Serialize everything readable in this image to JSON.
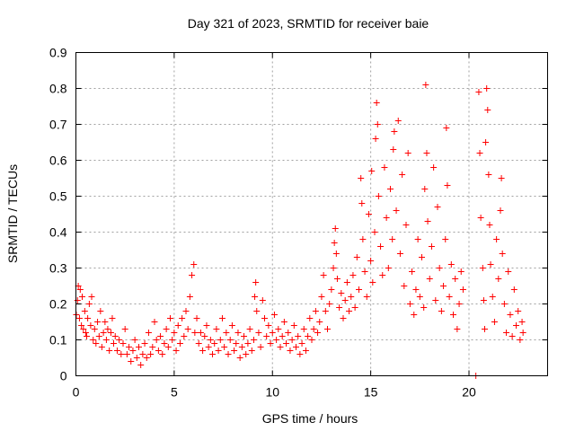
{
  "chart_data": {
    "type": "scatter",
    "title": "Day 321 of 2023, SRMTID for receiver baie",
    "xlabel": "GPS time / hours",
    "ylabel": "SRMTID / TECUs",
    "xlim": [
      0,
      24
    ],
    "ylim": [
      0,
      0.9
    ],
    "xticks": [
      0,
      5,
      10,
      15,
      20
    ],
    "xtick_labels": [
      "0",
      "5",
      "10",
      "15",
      "20"
    ],
    "yticks": [
      0,
      0.1,
      0.2,
      0.3,
      0.4,
      0.5,
      0.6,
      0.7,
      0.8,
      0.9
    ],
    "ytick_labels": [
      "0",
      "0.1",
      "0.2",
      "0.3",
      "0.4",
      "0.5",
      "0.6",
      "0.7",
      "0.8",
      "0.9"
    ],
    "grid": true,
    "marker": "plus",
    "color": "#ff0000",
    "series": [
      {
        "name": "SRMTID",
        "points": [
          [
            0.02,
            0.17
          ],
          [
            0.08,
            0.21
          ],
          [
            0.12,
            0.25
          ],
          [
            0.18,
            0.16
          ],
          [
            0.22,
            0.24
          ],
          [
            0.28,
            0.14
          ],
          [
            0.32,
            0.22
          ],
          [
            0.38,
            0.13
          ],
          [
            0.45,
            0.18
          ],
          [
            0.5,
            0.12
          ],
          [
            0.55,
            0.11
          ],
          [
            0.6,
            0.16
          ],
          [
            0.68,
            0.2
          ],
          [
            0.75,
            0.14
          ],
          [
            0.8,
            0.22
          ],
          [
            0.88,
            0.1
          ],
          [
            0.95,
            0.13
          ],
          [
            1.02,
            0.09
          ],
          [
            1.1,
            0.15
          ],
          [
            1.18,
            0.11
          ],
          [
            1.25,
            0.18
          ],
          [
            1.32,
            0.08
          ],
          [
            1.4,
            0.12
          ],
          [
            1.48,
            0.15
          ],
          [
            1.55,
            0.1
          ],
          [
            1.62,
            0.13
          ],
          [
            1.7,
            0.07
          ],
          [
            1.78,
            0.12
          ],
          [
            1.85,
            0.16
          ],
          [
            1.92,
            0.09
          ],
          [
            2.0,
            0.11
          ],
          [
            2.1,
            0.07
          ],
          [
            2.2,
            0.1
          ],
          [
            2.3,
            0.06
          ],
          [
            2.4,
            0.09
          ],
          [
            2.5,
            0.13
          ],
          [
            2.6,
            0.06
          ],
          [
            2.7,
            0.08
          ],
          [
            2.8,
            0.04
          ],
          [
            2.9,
            0.07
          ],
          [
            3.0,
            0.1
          ],
          [
            3.1,
            0.05
          ],
          [
            3.2,
            0.08
          ],
          [
            3.3,
            0.03
          ],
          [
            3.4,
            0.06
          ],
          [
            3.5,
            0.09
          ],
          [
            3.6,
            0.05
          ],
          [
            3.7,
            0.12
          ],
          [
            3.8,
            0.06
          ],
          [
            3.9,
            0.08
          ],
          [
            4.0,
            0.15
          ],
          [
            4.1,
            0.1
          ],
          [
            4.2,
            0.07
          ],
          [
            4.3,
            0.11
          ],
          [
            4.4,
            0.06
          ],
          [
            4.5,
            0.09
          ],
          [
            4.6,
            0.13
          ],
          [
            4.7,
            0.08
          ],
          [
            4.8,
            0.16
          ],
          [
            4.9,
            0.1
          ],
          [
            5.0,
            0.12
          ],
          [
            5.1,
            0.07
          ],
          [
            5.2,
            0.14
          ],
          [
            5.3,
            0.09
          ],
          [
            5.4,
            0.16
          ],
          [
            5.5,
            0.11
          ],
          [
            5.6,
            0.18
          ],
          [
            5.7,
            0.13
          ],
          [
            5.8,
            0.22
          ],
          [
            5.9,
            0.28
          ],
          [
            6.0,
            0.31
          ],
          [
            6.05,
            0.12
          ],
          [
            6.15,
            0.16
          ],
          [
            6.25,
            0.09
          ],
          [
            6.35,
            0.12
          ],
          [
            6.45,
            0.07
          ],
          [
            6.55,
            0.11
          ],
          [
            6.65,
            0.14
          ],
          [
            6.75,
            0.08
          ],
          [
            6.85,
            0.1
          ],
          [
            6.95,
            0.06
          ],
          [
            7.05,
            0.09
          ],
          [
            7.15,
            0.13
          ],
          [
            7.25,
            0.07
          ],
          [
            7.35,
            0.1
          ],
          [
            7.45,
            0.16
          ],
          [
            7.55,
            0.08
          ],
          [
            7.65,
            0.12
          ],
          [
            7.75,
            0.06
          ],
          [
            7.85,
            0.1
          ],
          [
            7.95,
            0.14
          ],
          [
            8.05,
            0.07
          ],
          [
            8.15,
            0.09
          ],
          [
            8.25,
            0.12
          ],
          [
            8.35,
            0.05
          ],
          [
            8.45,
            0.08
          ],
          [
            8.55,
            0.11
          ],
          [
            8.65,
            0.06
          ],
          [
            8.75,
            0.09
          ],
          [
            8.85,
            0.13
          ],
          [
            8.95,
            0.07
          ],
          [
            9.05,
            0.1
          ],
          [
            9.1,
            0.22
          ],
          [
            9.15,
            0.26
          ],
          [
            9.2,
            0.18
          ],
          [
            9.3,
            0.12
          ],
          [
            9.4,
            0.08
          ],
          [
            9.5,
            0.21
          ],
          [
            9.6,
            0.16
          ],
          [
            9.7,
            0.11
          ],
          [
            9.8,
            0.14
          ],
          [
            9.9,
            0.09
          ],
          [
            10.0,
            0.12
          ],
          [
            10.1,
            0.17
          ],
          [
            10.2,
            0.1
          ],
          [
            10.3,
            0.13
          ],
          [
            10.4,
            0.08
          ],
          [
            10.5,
            0.11
          ],
          [
            10.6,
            0.15
          ],
          [
            10.7,
            0.09
          ],
          [
            10.8,
            0.12
          ],
          [
            10.9,
            0.07
          ],
          [
            11.0,
            0.1
          ],
          [
            11.1,
            0.14
          ],
          [
            11.2,
            0.08
          ],
          [
            11.3,
            0.11
          ],
          [
            11.4,
            0.06
          ],
          [
            11.5,
            0.09
          ],
          [
            11.6,
            0.13
          ],
          [
            11.7,
            0.07
          ],
          [
            11.8,
            0.11
          ],
          [
            11.9,
            0.16
          ],
          [
            12.0,
            0.1
          ],
          [
            12.1,
            0.13
          ],
          [
            12.2,
            0.18
          ],
          [
            12.3,
            0.12
          ],
          [
            12.4,
            0.15
          ],
          [
            12.5,
            0.22
          ],
          [
            12.6,
            0.28
          ],
          [
            12.7,
            0.18
          ],
          [
            12.8,
            0.13
          ],
          [
            12.9,
            0.2
          ],
          [
            13.0,
            0.24
          ],
          [
            13.1,
            0.3
          ],
          [
            13.15,
            0.37
          ],
          [
            13.2,
            0.41
          ],
          [
            13.25,
            0.34
          ],
          [
            13.3,
            0.27
          ],
          [
            13.4,
            0.19
          ],
          [
            13.5,
            0.23
          ],
          [
            13.6,
            0.16
          ],
          [
            13.7,
            0.21
          ],
          [
            13.8,
            0.26
          ],
          [
            13.9,
            0.18
          ],
          [
            14.0,
            0.22
          ],
          [
            14.1,
            0.28
          ],
          [
            14.2,
            0.19
          ],
          [
            14.3,
            0.33
          ],
          [
            14.4,
            0.24
          ],
          [
            14.5,
            0.55
          ],
          [
            14.55,
            0.48
          ],
          [
            14.6,
            0.38
          ],
          [
            14.7,
            0.29
          ],
          [
            14.8,
            0.22
          ],
          [
            14.9,
            0.45
          ],
          [
            15.0,
            0.32
          ],
          [
            15.05,
            0.57
          ],
          [
            15.1,
            0.26
          ],
          [
            15.2,
            0.4
          ],
          [
            15.25,
            0.66
          ],
          [
            15.3,
            0.76
          ],
          [
            15.35,
            0.7
          ],
          [
            15.4,
            0.5
          ],
          [
            15.5,
            0.36
          ],
          [
            15.6,
            0.28
          ],
          [
            15.7,
            0.58
          ],
          [
            15.8,
            0.44
          ],
          [
            15.9,
            0.3
          ],
          [
            16.0,
            0.52
          ],
          [
            16.1,
            0.38
          ],
          [
            16.15,
            0.63
          ],
          [
            16.2,
            0.68
          ],
          [
            16.3,
            0.46
          ],
          [
            16.4,
            0.71
          ],
          [
            16.5,
            0.34
          ],
          [
            16.6,
            0.56
          ],
          [
            16.7,
            0.25
          ],
          [
            16.8,
            0.42
          ],
          [
            16.9,
            0.62
          ],
          [
            17.0,
            0.2
          ],
          [
            17.1,
            0.29
          ],
          [
            17.2,
            0.17
          ],
          [
            17.3,
            0.24
          ],
          [
            17.4,
            0.38
          ],
          [
            17.5,
            0.22
          ],
          [
            17.6,
            0.33
          ],
          [
            17.7,
            0.19
          ],
          [
            17.75,
            0.52
          ],
          [
            17.8,
            0.81
          ],
          [
            17.85,
            0.62
          ],
          [
            17.9,
            0.43
          ],
          [
            18.0,
            0.27
          ],
          [
            18.1,
            0.36
          ],
          [
            18.2,
            0.58
          ],
          [
            18.3,
            0.21
          ],
          [
            18.4,
            0.47
          ],
          [
            18.5,
            0.3
          ],
          [
            18.6,
            0.18
          ],
          [
            18.7,
            0.25
          ],
          [
            18.8,
            0.38
          ],
          [
            18.85,
            0.69
          ],
          [
            18.9,
            0.53
          ],
          [
            19.0,
            0.22
          ],
          [
            19.1,
            0.31
          ],
          [
            19.2,
            0.17
          ],
          [
            19.3,
            0.27
          ],
          [
            19.4,
            0.13
          ],
          [
            19.5,
            0.2
          ],
          [
            19.6,
            0.29
          ],
          [
            19.7,
            0.24
          ],
          [
            20.35,
            0.0
          ],
          [
            20.5,
            0.79
          ],
          [
            20.55,
            0.62
          ],
          [
            20.6,
            0.44
          ],
          [
            20.7,
            0.3
          ],
          [
            20.75,
            0.21
          ],
          [
            20.8,
            0.13
          ],
          [
            20.85,
            0.65
          ],
          [
            20.9,
            0.8
          ],
          [
            20.95,
            0.74
          ],
          [
            21.0,
            0.56
          ],
          [
            21.05,
            0.42
          ],
          [
            21.1,
            0.31
          ],
          [
            21.2,
            0.22
          ],
          [
            21.3,
            0.15
          ],
          [
            21.4,
            0.38
          ],
          [
            21.5,
            0.27
          ],
          [
            21.6,
            0.46
          ],
          [
            21.65,
            0.55
          ],
          [
            21.7,
            0.34
          ],
          [
            21.8,
            0.2
          ],
          [
            21.9,
            0.12
          ],
          [
            22.0,
            0.29
          ],
          [
            22.1,
            0.17
          ],
          [
            22.2,
            0.11
          ],
          [
            22.3,
            0.24
          ],
          [
            22.4,
            0.14
          ],
          [
            22.5,
            0.18
          ],
          [
            22.6,
            0.1
          ],
          [
            22.7,
            0.15
          ],
          [
            22.75,
            0.12
          ]
        ]
      }
    ]
  }
}
